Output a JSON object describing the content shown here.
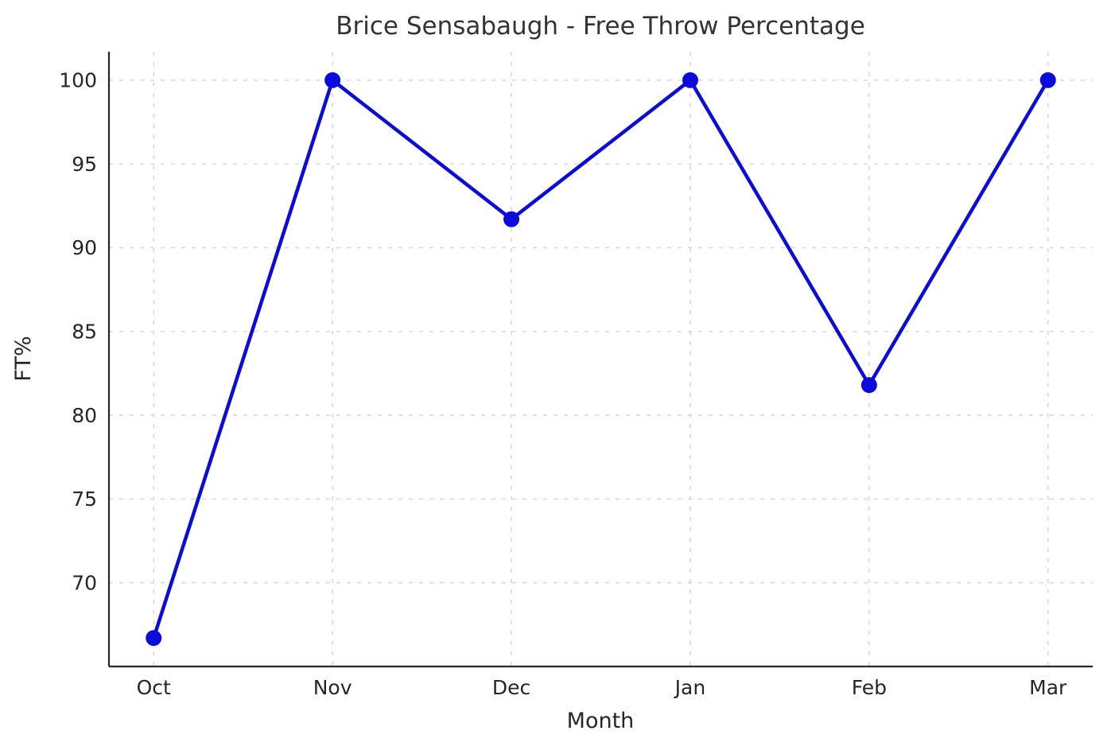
{
  "chart_data": {
    "type": "line",
    "title": "Brice Sensabaugh - Free Throw Percentage",
    "xlabel": "Month",
    "ylabel": "FT%",
    "categories": [
      "Oct",
      "Nov",
      "Dec",
      "Jan",
      "Feb",
      "Mar"
    ],
    "series": [
      {
        "name": "FT%",
        "values": [
          66.7,
          100,
          91.7,
          100,
          81.8,
          100
        ]
      }
    ],
    "yticks": [
      70,
      75,
      80,
      85,
      90,
      95,
      100
    ],
    "ylim": [
      65.0,
      101.7
    ],
    "grid": true,
    "legend": "none",
    "line_color": "#0b0bdb",
    "marker": "circle",
    "marker_radius": 10,
    "line_width": 4.5,
    "grid_color": "#d9d9d9",
    "axis_color": "#262626",
    "tick_color": "#262626",
    "title_color": "#333333",
    "background_color": "#ffffff"
  }
}
